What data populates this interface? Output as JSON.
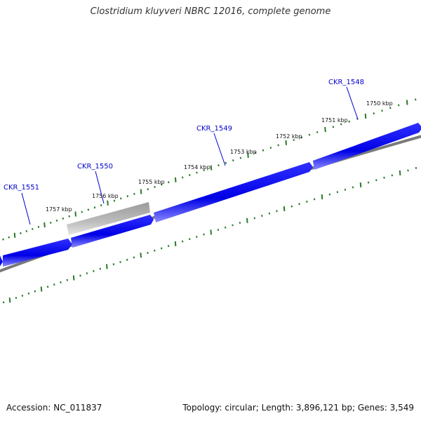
{
  "title": "Clostridium kluyveri NBRC 12016, complete genome",
  "footer": {
    "accession": "Accession: NC_011837",
    "summary": "Topology: circular; Length: 3,896,121 bp; Genes: 3,549"
  },
  "ticks": [
    "1757 kbp",
    "1756 kbp",
    "1755 kbp",
    "1754 kbp",
    "1753 kbp",
    "1752 kbp",
    "1751 kbp",
    "1750 kbp"
  ],
  "genes": [
    "CKR_1551",
    "CKR_1550",
    "CKR_1549",
    "CKR_1548"
  ],
  "colors": {
    "gene": "#0000e6",
    "pseudogene": "#b8b8b8",
    "backbone": "#7a7a7a",
    "tick": "#2a7a2a",
    "label": "#0000cc"
  }
}
